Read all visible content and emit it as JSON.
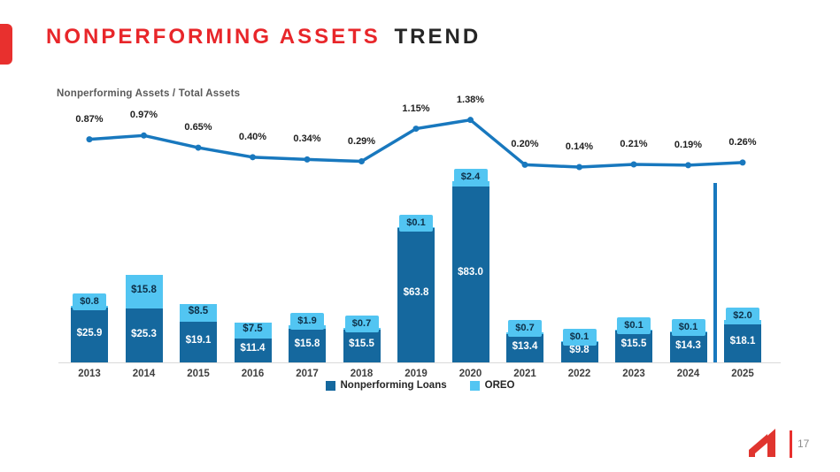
{
  "slide": {
    "title_red": "NONPERFORMING ASSETS",
    "title_dark": "TREND",
    "page_number": "17",
    "accent_red": "#e8302e"
  },
  "chart_data": {
    "type": "bar",
    "subtype": "stacked-bars-with-line-overlay",
    "title": "Nonperforming Assets / Total Assets",
    "categories": [
      "2013",
      "2014",
      "2015",
      "2016",
      "2017",
      "2018",
      "2019",
      "2020",
      "2021",
      "2022",
      "2023",
      "2024",
      "2025"
    ],
    "series": [
      {
        "name": "Nonperforming Loans",
        "type": "bar",
        "color": "#15689e",
        "values": [
          25.9,
          25.3,
          19.1,
          11.4,
          15.8,
          15.5,
          63.8,
          83.0,
          13.4,
          9.8,
          15.5,
          14.3,
          18.1
        ],
        "labels": [
          "$25.9",
          "$25.3",
          "$19.1",
          "$11.4",
          "$15.8",
          "$15.5",
          "$63.8",
          "$83.0",
          "$13.4",
          "$9.8",
          "$15.5",
          "$14.3",
          "$18.1"
        ]
      },
      {
        "name": "OREO",
        "type": "bar",
        "color": "#52c5f2",
        "values": [
          0.8,
          15.8,
          8.5,
          7.5,
          1.9,
          0.7,
          0.1,
          2.4,
          0.7,
          0.1,
          0.1,
          0.1,
          2.0
        ],
        "labels": [
          "$0.8",
          "$15.8",
          "$8.5",
          "$7.5",
          "$1.9",
          "$0.7",
          "$0.1",
          "$2.4",
          "$0.7",
          "$0.1",
          "$0.1",
          "$0.1",
          "$2.0"
        ]
      },
      {
        "name": "Nonperforming Assets / Total Assets",
        "type": "line",
        "color": "#1878be",
        "unit": "%",
        "values": [
          0.87,
          0.97,
          0.65,
          0.4,
          0.34,
          0.29,
          1.15,
          1.38,
          0.2,
          0.14,
          0.21,
          0.19,
          0.26
        ],
        "labels": [
          "0.87%",
          "0.97%",
          "0.65%",
          "0.40%",
          "0.34%",
          "0.29%",
          "1.15%",
          "1.38%",
          "0.20%",
          "0.14%",
          "0.21%",
          "0.19%",
          "0.26%"
        ]
      }
    ],
    "legend": {
      "items": [
        "Nonperforming Loans",
        "OREO"
      ],
      "position": "bottom-center"
    },
    "annotations": {
      "vertical_separator_between": [
        "2024",
        "2025"
      ],
      "separator_color": "#1878be"
    },
    "grid": false
  }
}
